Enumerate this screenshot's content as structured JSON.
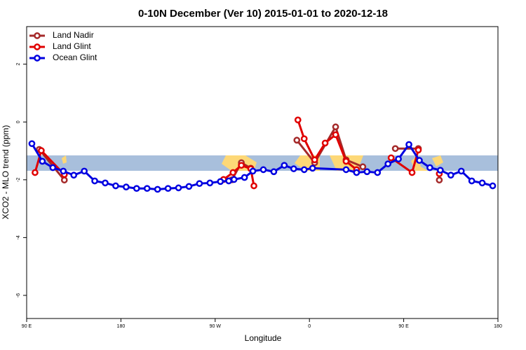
{
  "chart_data": {
    "type": "line",
    "title": "0-10N December (Ver 10)   2015-01-01 to 2020-12-18",
    "xlabel": "Longitude",
    "ylabel": "XCO2 - MLO trend (ppm)",
    "xlim": [
      90,
      540
    ],
    "ylim": [
      -6.8,
      3.3
    ],
    "xticks": [
      {
        "value": 90,
        "label": "90 E"
      },
      180,
      {
        "value": 270,
        "label": "90 W"
      },
      {
        "value": 360,
        "label": "0"
      },
      {
        "value": 450,
        "label": "90 E"
      },
      {
        "value": 540,
        "label": "180"
      }
    ],
    "yticks": [
      -6,
      -4,
      -2,
      0,
      2
    ],
    "legend": "top-left",
    "series": [
      {
        "name": "Land Nadir",
        "color": "#a52a2a",
        "x": [
          102,
          126,
          null,
          286,
          295,
          304,
          null,
          348,
          365,
          385,
          395,
          411,
          null,
          442,
          464,
          null,
          484
        ],
        "values": [
          -0.95,
          -2.01,
          null,
          -2.0,
          -1.41,
          -1.6,
          null,
          -0.63,
          -1.41,
          -0.17,
          -1.31,
          -1.55,
          null,
          -0.92,
          -0.92,
          null,
          -2.01
        ]
      },
      {
        "name": "Land Glint",
        "color": "#e00000",
        "x": [
          98,
          104,
          126,
          null,
          278,
          287,
          295,
          304,
          307,
          null,
          349,
          355,
          365,
          375,
          385,
          395,
          405,
          null,
          438,
          458,
          464,
          null,
          484
        ],
        "values": [
          -1.75,
          -0.99,
          -1.82,
          null,
          -1.99,
          -1.75,
          -1.5,
          -1.62,
          -2.21,
          null,
          0.07,
          -0.58,
          -1.31,
          -0.73,
          -0.44,
          -1.36,
          -1.65,
          null,
          -1.24,
          -1.75,
          -0.97,
          null,
          -1.79
        ]
      },
      {
        "name": "Ocean Glint",
        "color": "#0000e0",
        "x": [
          95,
          105,
          115,
          125,
          135,
          145,
          155,
          165,
          175,
          185,
          195,
          205,
          215,
          225,
          235,
          245,
          255,
          265,
          275,
          283,
          288,
          298,
          306,
          316,
          326,
          336,
          345,
          355,
          363,
          395,
          405,
          415,
          425,
          435,
          445,
          455,
          465,
          475,
          485,
          495,
          505,
          515,
          525,
          535
        ],
        "values": [
          -0.75,
          -1.36,
          -1.58,
          -1.7,
          -1.84,
          -1.7,
          -2.04,
          -2.11,
          -2.21,
          -2.25,
          -2.3,
          -2.3,
          -2.33,
          -2.3,
          -2.28,
          -2.23,
          -2.13,
          -2.11,
          -2.06,
          -2.04,
          -1.99,
          -1.92,
          -1.7,
          -1.65,
          -1.72,
          -1.5,
          -1.62,
          -1.65,
          -1.6,
          -1.65,
          -1.75,
          -1.72,
          -1.75,
          -1.45,
          -1.28,
          -0.78,
          -1.33,
          -1.58,
          -1.67,
          -1.84,
          -1.7,
          -2.04,
          -2.11,
          -2.21
        ]
      }
    ]
  }
}
